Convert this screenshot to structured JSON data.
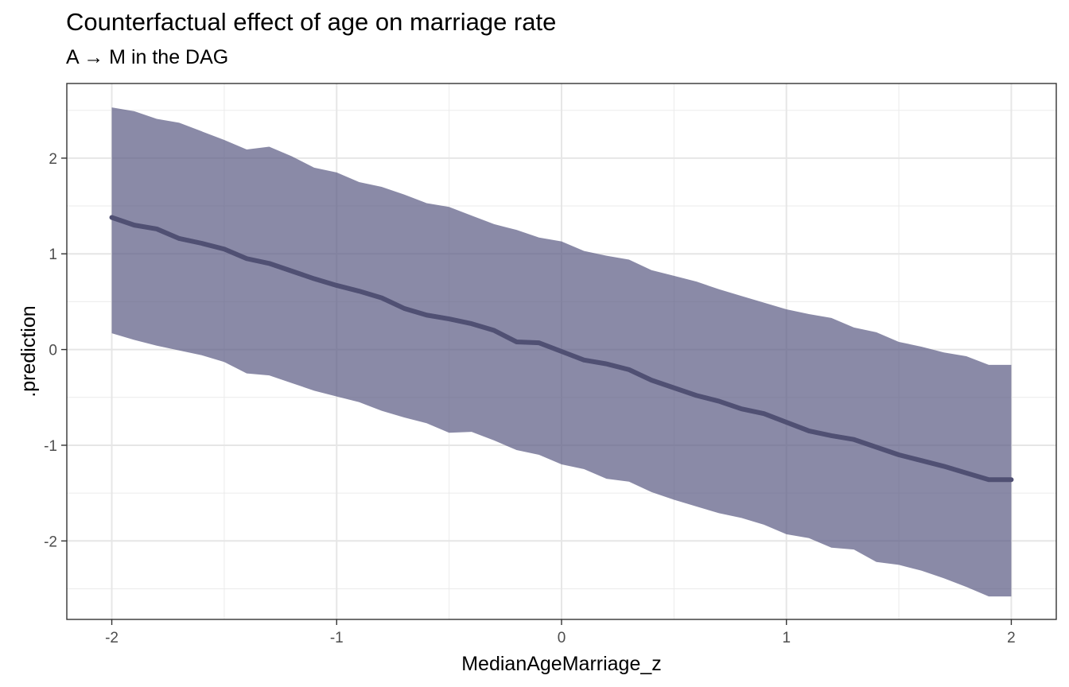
{
  "chart_data": {
    "type": "area",
    "title": "Counterfactual effect of age on marriage rate",
    "subtitle": "A → M in the DAG",
    "xlabel": "MedianAgeMarriage_z",
    "ylabel": ".prediction",
    "xlim": [
      -2.2,
      2.2
    ],
    "ylim": [
      -2.82,
      2.78
    ],
    "x_ticks": [
      -2,
      -1,
      0,
      1,
      2
    ],
    "y_ticks": [
      -2,
      -1,
      0,
      1,
      2
    ],
    "x_tick_labels": [
      "-2",
      "-1",
      "0",
      "1",
      "2"
    ],
    "y_tick_labels": [
      "-2",
      "-1",
      "0",
      "1",
      "2"
    ],
    "grid": true,
    "theme": "bw",
    "band_color": "#595982",
    "band_opacity": 0.7,
    "line_color": "#505073",
    "x": [
      -2.0,
      -1.9,
      -1.8,
      -1.7,
      -1.6,
      -1.5,
      -1.4,
      -1.3,
      -1.2,
      -1.1,
      -1.0,
      -0.9,
      -0.8,
      -0.7,
      -0.6,
      -0.5,
      -0.4,
      -0.3,
      -0.2,
      -0.1,
      0.0,
      0.1,
      0.2,
      0.3,
      0.4,
      0.5,
      0.6,
      0.7,
      0.8,
      0.9,
      1.0,
      1.1,
      1.2,
      1.3,
      1.4,
      1.5,
      1.6,
      1.7,
      1.8,
      1.9,
      2.0
    ],
    "series": [
      {
        "type": "line",
        "values": [
          1.38,
          1.3,
          1.26,
          1.16,
          1.11,
          1.05,
          0.95,
          0.9,
          0.82,
          0.74,
          0.67,
          0.61,
          0.54,
          0.43,
          0.36,
          0.32,
          0.27,
          0.2,
          0.08,
          0.07,
          -0.02,
          -0.11,
          -0.15,
          -0.21,
          -0.32,
          -0.4,
          -0.48,
          -0.54,
          -0.62,
          -0.67,
          -0.76,
          -0.85,
          -0.9,
          -0.94,
          -1.02,
          -1.1,
          -1.16,
          -1.22,
          -1.29,
          -1.36,
          -1.36
        ]
      },
      {
        "type": "ribbon",
        "lower": [
          0.17,
          0.1,
          0.04,
          -0.01,
          -0.06,
          -0.13,
          -0.25,
          -0.27,
          -0.35,
          -0.43,
          -0.49,
          -0.55,
          -0.64,
          -0.71,
          -0.77,
          -0.87,
          -0.86,
          -0.95,
          -1.05,
          -1.1,
          -1.2,
          -1.25,
          -1.35,
          -1.38,
          -1.49,
          -1.57,
          -1.64,
          -1.71,
          -1.76,
          -1.83,
          -1.93,
          -1.97,
          -2.07,
          -2.09,
          -2.22,
          -2.25,
          -2.31,
          -2.39,
          -2.48,
          -2.58,
          -2.58
        ],
        "upper": [
          2.53,
          2.49,
          2.41,
          2.37,
          2.28,
          2.19,
          2.09,
          2.12,
          2.02,
          1.9,
          1.85,
          1.75,
          1.7,
          1.62,
          1.53,
          1.49,
          1.4,
          1.31,
          1.25,
          1.17,
          1.13,
          1.03,
          0.98,
          0.94,
          0.83,
          0.77,
          0.71,
          0.63,
          0.56,
          0.49,
          0.42,
          0.37,
          0.33,
          0.23,
          0.18,
          0.08,
          0.03,
          -0.03,
          -0.07,
          -0.16,
          -0.16
        ]
      }
    ]
  }
}
